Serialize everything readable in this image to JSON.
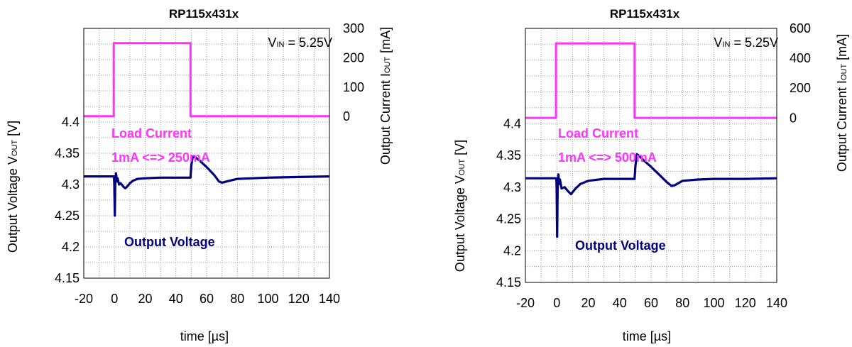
{
  "chart_data": [
    {
      "type": "line",
      "title": "RP115x431x",
      "vin_label": {
        "main": "V",
        "sub": "IN",
        "value": " = 5.25V"
      },
      "xlabel": "time [µs]",
      "ylabel_left": {
        "main": "Output Voltage V",
        "sub": "OUT",
        "unit": " [V]"
      },
      "ylabel_right": {
        "main": "Output Current  I",
        "sub": "OUT",
        "unit": " [mA]"
      },
      "grid": true,
      "xlim": [
        -20,
        140
      ],
      "x_ticks": [
        -20,
        0,
        20,
        40,
        60,
        80,
        100,
        120,
        140
      ],
      "x_tick_labels": [
        "-20",
        "0",
        "20",
        "40",
        "60",
        "80",
        "100",
        "120",
        "140"
      ],
      "ylim_left": [
        4.15,
        4.55
      ],
      "y_left_ticks": [
        4.15,
        4.2,
        4.25,
        4.3,
        4.35,
        4.4
      ],
      "y_left_tick_labels": [
        "4.15",
        "4.2",
        "4.25",
        "4.3",
        "4.35",
        "4.4"
      ],
      "ylim_right": [
        -550,
        300
      ],
      "y_right_ticks": [
        0,
        100,
        200,
        300
      ],
      "y_right_tick_labels": [
        "0",
        "100",
        "200",
        "300"
      ],
      "annotations": {
        "current_line1": "Load Current",
        "current_line2": "1mA <=> 250mA",
        "voltage": "Output Voltage"
      },
      "series": [
        {
          "name": "Load Current",
          "axis": "right",
          "color": "#ff33ff",
          "x": [
            -20,
            -0.5,
            -0.5,
            49.5,
            49.5,
            140
          ],
          "y": [
            1,
            1,
            250,
            250,
            1,
            1
          ]
        },
        {
          "name": "Output Voltage",
          "axis": "left",
          "color": "#000080",
          "x": [
            -20,
            -1,
            -0.3,
            -0.1,
            0.2,
            0.5,
            1,
            1.5,
            2,
            3,
            4,
            5,
            6,
            7,
            8,
            10,
            12,
            15,
            20,
            30,
            49.5,
            50,
            51,
            53,
            56,
            60,
            65,
            68,
            70,
            75,
            80,
            90,
            100,
            120,
            140
          ],
          "y": [
            4.313,
            4.313,
            4.313,
            4.3,
            4.25,
            4.3,
            4.318,
            4.305,
            4.31,
            4.3,
            4.302,
            4.299,
            4.296,
            4.294,
            4.296,
            4.302,
            4.306,
            4.309,
            4.31,
            4.311,
            4.311,
            4.33,
            4.345,
            4.343,
            4.337,
            4.328,
            4.315,
            4.305,
            4.303,
            4.306,
            4.309,
            4.31,
            4.311,
            4.312,
            4.313
          ]
        }
      ]
    },
    {
      "type": "line",
      "title": "RP115x431x",
      "vin_label": {
        "main": "V",
        "sub": "IN",
        "value": " = 5.25V"
      },
      "xlabel": "time [µs]",
      "ylabel_left": {
        "main": "Output Voltage V",
        "sub": "OUT",
        "unit": " [V]"
      },
      "ylabel_right": {
        "main": "Output Current  I",
        "sub": "OUT",
        "unit": " [mA]"
      },
      "grid": true,
      "xlim": [
        -20,
        140
      ],
      "x_ticks": [
        -20,
        0,
        20,
        40,
        60,
        80,
        100,
        120,
        140
      ],
      "x_tick_labels": [
        "-20",
        "0",
        "20",
        "40",
        "60",
        "80",
        "100",
        "120",
        "140"
      ],
      "ylim_left": [
        4.15,
        4.55
      ],
      "y_left_ticks": [
        4.15,
        4.2,
        4.25,
        4.3,
        4.35,
        4.4
      ],
      "y_left_tick_labels": [
        "4.15",
        "4.2",
        "4.25",
        "4.3",
        "4.35",
        "4.4"
      ],
      "ylim_right": [
        -1100,
        600
      ],
      "y_right_ticks": [
        0,
        200,
        400,
        600
      ],
      "y_right_tick_labels": [
        "0",
        "200",
        "400",
        "600"
      ],
      "annotations": {
        "current_line1": "Load Current",
        "current_line2": "1mA <=> 500mA",
        "voltage": "Output Voltage"
      },
      "series": [
        {
          "name": "Load Current",
          "axis": "right",
          "color": "#ff33ff",
          "x": [
            -20,
            -0.5,
            -0.5,
            49.5,
            49.5,
            140
          ],
          "y": [
            1,
            1,
            500,
            500,
            1,
            1
          ]
        },
        {
          "name": "Output Voltage",
          "axis": "left",
          "color": "#000080",
          "x": [
            -20,
            -1,
            -0.3,
            -0.1,
            0.2,
            0.5,
            1,
            1.5,
            2,
            3,
            5,
            7,
            9,
            10,
            12,
            15,
            20,
            30,
            49.5,
            50,
            51,
            52,
            55,
            60,
            65,
            70,
            73,
            75,
            80,
            90,
            100,
            120,
            140
          ],
          "y": [
            4.314,
            4.314,
            4.314,
            4.3,
            4.222,
            4.3,
            4.32,
            4.305,
            4.312,
            4.298,
            4.3,
            4.294,
            4.289,
            4.292,
            4.298,
            4.305,
            4.31,
            4.313,
            4.313,
            4.333,
            4.352,
            4.35,
            4.343,
            4.332,
            4.32,
            4.308,
            4.302,
            4.303,
            4.31,
            4.312,
            4.313,
            4.313,
            4.314
          ]
        }
      ]
    }
  ]
}
